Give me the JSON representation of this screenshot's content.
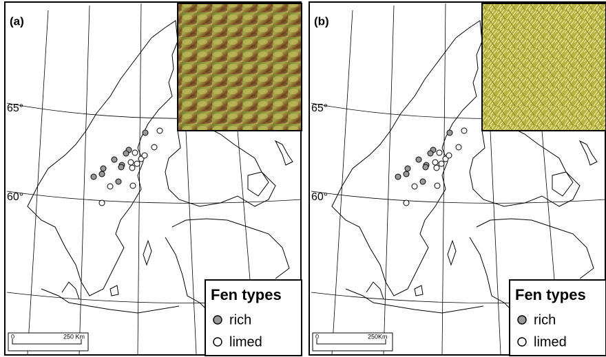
{
  "panels": [
    {
      "label": "(a)",
      "latitudes": [
        "65°",
        "60°"
      ],
      "legend": {
        "title": "Fen types",
        "items": [
          "rich",
          "limed"
        ]
      },
      "scale": {
        "start": "0",
        "end": "250 Km"
      }
    },
    {
      "label": "(b)",
      "latitudes": [
        "65°",
        "60°"
      ],
      "legend": {
        "title": "Fen types",
        "items": [
          "rich",
          "limed"
        ]
      },
      "scale": {
        "start": "0",
        "end": "250Km"
      }
    }
  ]
}
